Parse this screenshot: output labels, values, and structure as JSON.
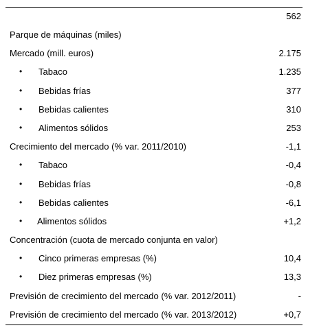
{
  "rows": [
    {
      "label": "",
      "value": "562",
      "sub": false
    },
    {
      "label": "Parque de máquinas (miles)",
      "value": "",
      "sub": false
    },
    {
      "label": "Mercado (mill. euros)",
      "value": "2.175",
      "sub": false
    },
    {
      "label": "Tabaco",
      "value": "1.235",
      "sub": true
    },
    {
      "label": "Bebidas frías",
      "value": "377",
      "sub": true
    },
    {
      "label": "Bebidas calientes",
      "value": "310",
      "sub": true
    },
    {
      "label": "Alimentos sólidos",
      "value": "253",
      "sub": true
    },
    {
      "label": "Crecimiento del mercado (% var. 2011/2010)",
      "value": "-1,1",
      "sub": false
    },
    {
      "label": "Tabaco",
      "value": "-0,4",
      "sub": true
    },
    {
      "label": "Bebidas frías",
      "value": "-0,8",
      "sub": true
    },
    {
      "label": "Bebidas calientes",
      "value": "-6,1",
      "sub": true
    },
    {
      "label": "Alimentos sólidos",
      "value": "+1,2",
      "sub": true
    },
    {
      "label": "Concentración (cuota de mercado conjunta en valor)",
      "value": "",
      "sub": false
    },
    {
      "label": "Cinco primeras empresas (%)",
      "value": "10,4",
      "sub": true
    },
    {
      "label": "Diez primeras empresas (%)",
      "value": "13,3",
      "sub": true
    },
    {
      "label": "Previsión de crecimiento del mercado (% var. 2012/2011)",
      "value": "-",
      "sub": false
    },
    {
      "label": "Previsión de crecimiento del mercado (% var. 2013/2012)",
      "value": "+0,7",
      "sub": false
    }
  ],
  "bullet": "•"
}
